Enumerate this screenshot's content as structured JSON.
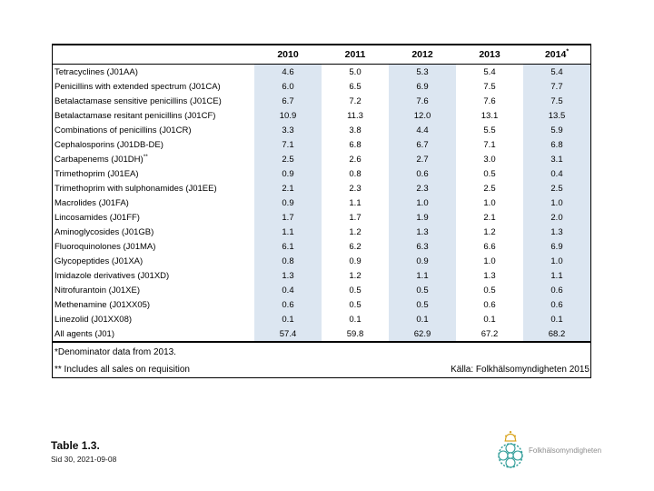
{
  "table": {
    "columns": [
      {
        "label": ""
      },
      {
        "label": "2010"
      },
      {
        "label": "2011"
      },
      {
        "label": "2012"
      },
      {
        "label": "2013"
      },
      {
        "label": "2014",
        "sup": "*"
      }
    ],
    "shaded_years": [
      "2010",
      "2012",
      "2014"
    ],
    "shade_color": "#dce6f1",
    "rows": [
      {
        "label": "Tetracyclines (J01AA)",
        "values": [
          "4.6",
          "5.0",
          "5.3",
          "5.4",
          "5.4"
        ]
      },
      {
        "label": "Penicillins with extended spectrum (J01CA)",
        "values": [
          "6.0",
          "6.5",
          "6.9",
          "7.5",
          "7.7"
        ]
      },
      {
        "label": "Betalactamase sensitive penicillins (J01CE)",
        "values": [
          "6.7",
          "7.2",
          "7.6",
          "7.6",
          "7.5"
        ]
      },
      {
        "label": "Betalactamase resitant penicillins (J01CF)",
        "values": [
          "10.9",
          "11.3",
          "12.0",
          "13.1",
          "13.5"
        ]
      },
      {
        "label": "Combinations of penicillins (J01CR)",
        "values": [
          "3.3",
          "3.8",
          "4.4",
          "5.5",
          "5.9"
        ]
      },
      {
        "label": "Cephalosporins (J01DB-DE)",
        "values": [
          "7.1",
          "6.8",
          "6.7",
          "7.1",
          "6.8"
        ]
      },
      {
        "label": "Carbapenems (J01DH)",
        "sup": "**",
        "values": [
          "2.5",
          "2.6",
          "2.7",
          "3.0",
          "3.1"
        ]
      },
      {
        "label": "Trimethoprim (J01EA)",
        "values": [
          "0.9",
          "0.8",
          "0.6",
          "0.5",
          "0.4"
        ]
      },
      {
        "label": "Trimethoprim with sulphonamides (J01EE)",
        "values": [
          "2.1",
          "2.3",
          "2.3",
          "2.5",
          "2.5"
        ]
      },
      {
        "label": "Macrolides (J01FA)",
        "values": [
          "0.9",
          "1.1",
          "1.0",
          "1.0",
          "1.0"
        ]
      },
      {
        "label": "Lincosamides (J01FF)",
        "values": [
          "1.7",
          "1.7",
          "1.9",
          "2.1",
          "2.0"
        ]
      },
      {
        "label": "Aminoglycosides (J01GB)",
        "values": [
          "1.1",
          "1.2",
          "1.3",
          "1.2",
          "1.3"
        ]
      },
      {
        "label": "Fluoroquinolones (J01MA)",
        "values": [
          "6.1",
          "6.2",
          "6.3",
          "6.6",
          "6.9"
        ]
      },
      {
        "label": "Glycopeptides (J01XA)",
        "values": [
          "0.8",
          "0.9",
          "0.9",
          "1.0",
          "1.0"
        ]
      },
      {
        "label": "Imidazole derivatives (J01XD)",
        "values": [
          "1.3",
          "1.2",
          "1.1",
          "1.3",
          "1.1"
        ]
      },
      {
        "label": "Nitrofurantoin (J01XE)",
        "values": [
          "0.4",
          "0.5",
          "0.5",
          "0.5",
          "0.6"
        ]
      },
      {
        "label": "Methenamine (J01XX05)",
        "values": [
          "0.6",
          "0.5",
          "0.5",
          "0.6",
          "0.6"
        ]
      },
      {
        "label": "Linezolid (J01XX08)",
        "values": [
          "0.1",
          "0.1",
          "0.1",
          "0.1",
          "0.1"
        ]
      },
      {
        "label": "All agents (J01)",
        "values": [
          "57.4",
          "59.8",
          "62.9",
          "67.2",
          "68.2"
        ]
      }
    ]
  },
  "footnotes": {
    "line1": "*Denominator data from 2013.",
    "line2": "** Includes all sales on requisition",
    "source": "Källa: Folkhälsomyndigheten 2015"
  },
  "footer": {
    "table_label": "Table 1.3.",
    "slide_info": "Sid 30, 2021-09-08"
  },
  "logo": {
    "text": "Folkhälsomyndigheten",
    "emblem_teal": "#2f9c98",
    "crown_gold": "#d9a520"
  }
}
